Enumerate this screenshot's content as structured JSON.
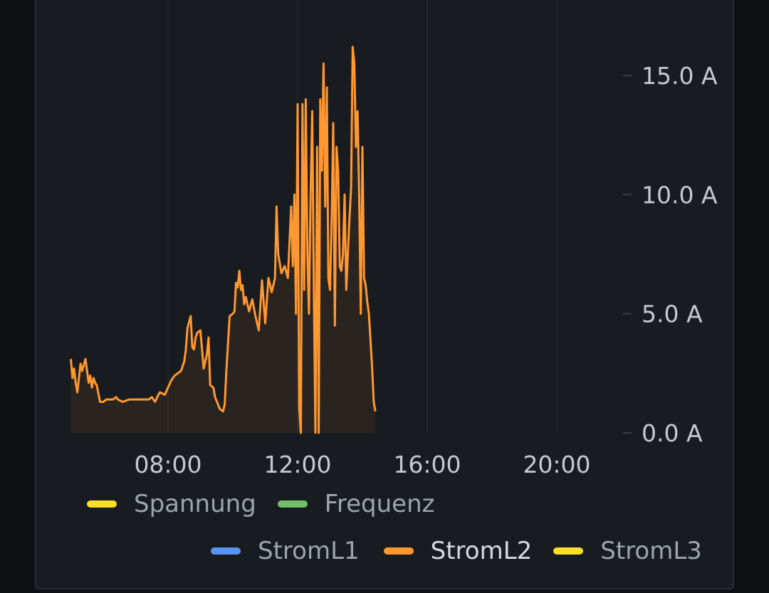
{
  "chart_data": {
    "type": "area",
    "x_unit": "hour of day",
    "x_range": [
      5,
      23.5
    ],
    "x_ticks": [
      8,
      12,
      16,
      20
    ],
    "x_tick_labels": [
      "08:00",
      "12:00",
      "16:00",
      "20:00"
    ],
    "y_range": [
      0,
      17.5
    ],
    "y_ticks": [
      0,
      5,
      10,
      15
    ],
    "y_tick_labels": [
      "0.0 A",
      "5.0 A",
      "10.0 A",
      "15.0 A"
    ],
    "y_axis_side": "right",
    "grid": "vertical",
    "legend_placement": "bottom",
    "series": [
      {
        "name": "StromL2",
        "color": "#ff9830",
        "x": [
          5.0,
          5.05,
          5.1,
          5.15,
          5.2,
          5.3,
          5.35,
          5.45,
          5.5,
          5.55,
          5.6,
          5.65,
          5.7,
          5.75,
          5.8,
          5.9,
          6.0,
          6.1,
          6.2,
          6.3,
          6.4,
          6.45,
          6.6,
          6.8,
          7.0,
          7.2,
          7.4,
          7.5,
          7.6,
          7.7,
          7.75,
          7.9,
          8.0,
          8.1,
          8.2,
          8.3,
          8.4,
          8.5,
          8.55,
          8.6,
          8.7,
          8.75,
          8.8,
          8.85,
          8.9,
          9.0,
          9.1,
          9.2,
          9.25,
          9.3,
          9.4,
          9.45,
          9.6,
          9.7,
          9.75,
          9.8,
          9.9,
          10.0,
          10.05,
          10.1,
          10.15,
          10.2,
          10.25,
          10.3,
          10.35,
          10.4,
          10.5,
          10.6,
          10.7,
          10.8,
          10.9,
          11.0,
          11.1,
          11.2,
          11.3,
          11.35,
          11.4,
          11.45,
          11.5,
          11.6,
          11.7,
          11.8,
          11.85,
          11.9,
          11.95,
          12.0,
          12.05,
          12.1,
          12.15,
          12.2,
          12.25,
          12.3,
          12.35,
          12.4,
          12.45,
          12.5,
          12.55,
          12.6,
          12.65,
          12.7,
          12.75,
          12.8,
          12.85,
          12.9,
          12.95,
          13.0,
          13.05,
          13.1,
          13.15,
          13.2,
          13.25,
          13.3,
          13.35,
          13.4,
          13.45,
          13.5,
          13.55,
          13.6,
          13.65,
          13.7,
          13.75,
          13.8,
          13.85,
          13.9,
          13.95,
          14.0,
          14.05,
          14.1,
          14.15,
          14.2,
          14.3,
          14.35,
          14.4
        ],
        "values": [
          3.1,
          2.3,
          2.7,
          2.1,
          1.7,
          2.9,
          2.6,
          3.1,
          2.6,
          2.1,
          2.4,
          1.9,
          2.3,
          2.1,
          2.0,
          1.3,
          1.3,
          1.4,
          1.4,
          1.4,
          1.5,
          1.4,
          1.3,
          1.4,
          1.4,
          1.4,
          1.4,
          1.5,
          1.3,
          1.6,
          1.7,
          1.6,
          1.9,
          2.2,
          2.4,
          2.5,
          2.6,
          3.0,
          3.5,
          4.4,
          4.9,
          3.6,
          3.5,
          4.0,
          4.2,
          4.3,
          2.7,
          3.3,
          4.0,
          2.0,
          1.9,
          1.5,
          1.0,
          0.9,
          1.2,
          2.6,
          4.9,
          5.0,
          5.1,
          6.3,
          6.1,
          6.8,
          6.0,
          6.2,
          5.4,
          5.7,
          5.1,
          5.6,
          4.9,
          4.3,
          6.4,
          4.6,
          6.5,
          5.9,
          6.5,
          9.5,
          7.5,
          7.1,
          6.7,
          7.0,
          6.5,
          9.5,
          7.0,
          10.0,
          5.0,
          13.8,
          1.0,
          0.0,
          13.8,
          6.0,
          14.0,
          7.5,
          5.0,
          10.0,
          13.5,
          6.0,
          0.0,
          12.0,
          0.0,
          14.0,
          11.0,
          15.5,
          9.5,
          14.5,
          6.5,
          6.0,
          9.0,
          13.0,
          4.5,
          12.0,
          11.0,
          7.0,
          6.8,
          7.5,
          10.0,
          6.0,
          7.5,
          9.0,
          10.3,
          16.2,
          15.5,
          12.0,
          13.5,
          10.0,
          5.0,
          12.0,
          6.5,
          6.2,
          5.5,
          5.0,
          2.7,
          1.3,
          0.9
        ],
        "fill": true
      }
    ],
    "legend": [
      {
        "name": "Spannung",
        "color": "#fade2a",
        "active": false
      },
      {
        "name": "Frequenz",
        "color": "#73bf69",
        "active": false
      },
      {
        "name": "StromL1",
        "color": "#5794f2",
        "active": false
      },
      {
        "name": "StromL2",
        "color": "#ff9830",
        "active": true
      },
      {
        "name": "StromL3",
        "color": "#fade2a",
        "active": false
      }
    ]
  }
}
